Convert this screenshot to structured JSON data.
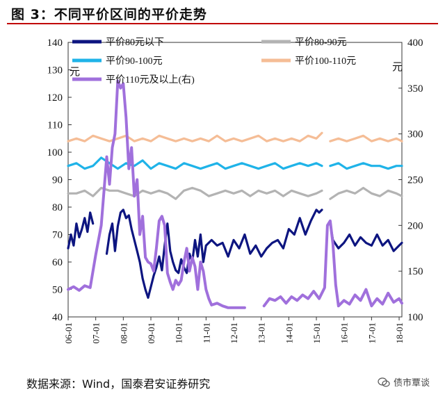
{
  "figure": {
    "title": "图 3：不同平价区间的平价走势",
    "source": "数据来源：Wind，国泰君安证券研究",
    "watermark": "债市覃谈"
  },
  "chart_data": {
    "type": "line",
    "left_axis": {
      "ylim": [
        40,
        140
      ],
      "ticks": [
        "40",
        "50",
        "60",
        "70",
        "80",
        "90",
        "100",
        "110",
        "120",
        "130",
        "140"
      ],
      "unit": "元"
    },
    "right_axis": {
      "ylim": [
        100,
        400
      ],
      "ticks": [
        "100",
        "150",
        "200",
        "250",
        "300",
        "350",
        "400"
      ],
      "unit": "元"
    },
    "x_ticks": [
      "06-01",
      "07-01",
      "08-01",
      "09-01",
      "10-01",
      "11-01",
      "12-01",
      "13-01",
      "14-01",
      "15-01",
      "16-01",
      "17-01",
      "18-01"
    ],
    "xlim": [
      2006.0,
      2018.1
    ],
    "grid": false,
    "legend_position": "top",
    "series": [
      {
        "name": "平价80元以下",
        "axis": "left",
        "color": "#0d1580",
        "x": [
          2006.0,
          2006.1,
          2006.2,
          2006.3,
          2006.4,
          2006.5,
          2006.6,
          2006.7,
          2006.8,
          2006.9,
          2007.0,
          2007.1,
          2007.2,
          2007.3,
          2007.4,
          2007.5,
          2007.6,
          2007.7,
          2007.8,
          2007.9,
          2008.0,
          2008.1,
          2008.2,
          2008.3,
          2008.4,
          2008.5,
          2008.6,
          2008.7,
          2008.8,
          2008.9,
          2009.0,
          2009.1,
          2009.2,
          2009.3,
          2009.4,
          2009.5,
          2009.6,
          2009.7,
          2009.8,
          2009.9,
          2010.0,
          2010.1,
          2010.2,
          2010.3,
          2010.4,
          2010.5,
          2010.6,
          2010.7,
          2010.8,
          2010.9,
          2011.0,
          2011.2,
          2011.4,
          2011.6,
          2011.8,
          2012.0,
          2012.2,
          2012.4,
          2012.6,
          2012.8,
          2013.0,
          2013.2,
          2013.4,
          2013.6,
          2013.8,
          2014.0,
          2014.2,
          2014.4,
          2014.6,
          2014.8,
          2015.0,
          2015.1,
          2015.2,
          null,
          2015.5,
          2015.6,
          2015.8,
          2016.0,
          2016.2,
          2016.4,
          2016.6,
          2016.8,
          2017.0,
          2017.2,
          2017.4,
          2017.6,
          2017.8,
          2018.0,
          2018.1
        ],
        "y": [
          65,
          70,
          66,
          74,
          69,
          72,
          76,
          71,
          78,
          74,
          null,
          null,
          null,
          null,
          63,
          70,
          74,
          64,
          73,
          78,
          79,
          76,
          77,
          72,
          68,
          64,
          60,
          54,
          50,
          47,
          51,
          55,
          58,
          62,
          57,
          66,
          74,
          64,
          60,
          57,
          56,
          61,
          58,
          56,
          63,
          60,
          68,
          62,
          70,
          60,
          66,
          68,
          66,
          67,
          62,
          68,
          65,
          70,
          63,
          66,
          62,
          65,
          67,
          68,
          65,
          72,
          70,
          76,
          70,
          75,
          79,
          78,
          79,
          null,
          74,
          68,
          65,
          67,
          70,
          66,
          69,
          67,
          66,
          70,
          66,
          68,
          64,
          66,
          67
        ],
        "gaps_note": ""
      },
      {
        "name": "平价80-90元",
        "axis": "left",
        "color": "#b3b3b3",
        "x": [
          2006.0,
          2006.3,
          2006.6,
          2006.9,
          2007.2,
          2007.5,
          2007.8,
          2008.1,
          2008.4,
          2008.7,
          2009.0,
          2009.3,
          2009.6,
          2009.9,
          2010.2,
          2010.5,
          2010.8,
          2011.1,
          2011.4,
          2011.7,
          2012.0,
          2012.3,
          2012.6,
          2012.9,
          2013.2,
          2013.5,
          2013.8,
          2014.1,
          2014.4,
          2014.7,
          2015.0,
          2015.2,
          null,
          2015.5,
          2015.8,
          2016.1,
          2016.4,
          2016.7,
          2017.0,
          2017.3,
          2017.6,
          2017.9,
          2018.1
        ],
        "y": [
          85,
          85,
          86,
          84,
          87,
          86,
          86,
          85,
          84,
          86,
          85,
          86,
          85,
          83,
          86,
          87,
          86,
          84,
          85,
          86,
          85,
          86,
          84,
          86,
          85,
          86,
          84,
          86,
          85,
          84,
          85,
          86,
          null,
          83,
          85,
          86,
          85,
          87,
          85,
          84,
          86,
          85,
          84
        ]
      },
      {
        "name": "平价90-100元",
        "axis": "left",
        "color": "#1fb3e8",
        "x": [
          2006.0,
          2006.3,
          2006.6,
          2006.9,
          2007.2,
          2007.5,
          2007.8,
          2008.1,
          2008.4,
          2008.7,
          2009.0,
          2009.3,
          2009.6,
          2009.9,
          2010.2,
          2010.5,
          2010.8,
          2011.1,
          2011.4,
          2011.7,
          2012.0,
          2012.3,
          2012.6,
          2012.9,
          2013.2,
          2013.5,
          2013.8,
          2014.1,
          2014.4,
          2014.7,
          2015.0,
          2015.2,
          null,
          2015.5,
          2015.8,
          2016.1,
          2016.4,
          2016.7,
          2017.0,
          2017.3,
          2017.6,
          2017.9,
          2018.1
        ],
        "y": [
          95,
          96,
          94,
          95,
          98,
          96,
          94,
          96,
          95,
          97,
          94,
          96,
          95,
          94,
          96,
          95,
          94,
          95,
          96,
          94,
          95,
          96,
          95,
          94,
          95,
          96,
          94,
          95,
          96,
          95,
          96,
          95,
          null,
          95,
          96,
          94,
          95,
          96,
          95,
          95,
          94,
          95,
          95
        ]
      },
      {
        "name": "平价100-110元",
        "axis": "left",
        "color": "#f5bd96",
        "x": [
          2006.0,
          2006.3,
          2006.6,
          2006.9,
          2007.2,
          2007.5,
          2007.8,
          2008.1,
          2008.4,
          2008.7,
          2009.0,
          2009.3,
          2009.6,
          2009.9,
          2010.2,
          2010.5,
          2010.8,
          2011.1,
          2011.4,
          2011.7,
          2012.0,
          2012.3,
          2012.6,
          2012.9,
          2013.2,
          2013.5,
          2013.8,
          2014.1,
          2014.4,
          2014.7,
          2015.0,
          2015.2,
          null,
          2015.5,
          2015.8,
          2016.1,
          2016.4,
          2016.7,
          2017.0,
          2017.3,
          2017.6,
          2017.9,
          2018.1
        ],
        "y": [
          104,
          105,
          104,
          106,
          105,
          104,
          105,
          106,
          104,
          105,
          104,
          106,
          105,
          104,
          105,
          104,
          105,
          104,
          106,
          104,
          105,
          104,
          105,
          106,
          104,
          105,
          104,
          105,
          104,
          106,
          105,
          107,
          null,
          104,
          105,
          104,
          105,
          106,
          104,
          105,
          104,
          105,
          104
        ]
      },
      {
        "name": "平价110元及以上(右)",
        "axis": "right",
        "color": "#a070dc",
        "x": [
          2006.0,
          2006.2,
          2006.4,
          2006.6,
          2006.8,
          2007.0,
          2007.2,
          2007.4,
          2007.5,
          2007.6,
          2007.7,
          2007.8,
          2007.9,
          2008.0,
          2008.1,
          2008.2,
          2008.3,
          2008.4,
          2008.5,
          2008.6,
          2008.7,
          2008.8,
          2008.9,
          2009.0,
          2009.1,
          2009.2,
          2009.3,
          2009.4,
          2009.5,
          2009.6,
          2009.7,
          2009.8,
          2009.9,
          2010.0,
          2010.1,
          2010.2,
          2010.3,
          2010.4,
          2010.5,
          2010.6,
          2010.7,
          2010.8,
          2010.9,
          2011.0,
          2011.1,
          2011.2,
          2011.4,
          2011.6,
          2011.8,
          2012.0,
          2012.2,
          2012.4,
          2012.6,
          2012.8,
          2013.0,
          null,
          2013.1,
          2013.3,
          2013.5,
          2013.7,
          2013.9,
          2014.1,
          2014.3,
          2014.5,
          2014.7,
          2014.9,
          2015.1,
          2015.3,
          2015.4,
          2015.5,
          2015.6,
          2015.7,
          2015.8,
          2016.0,
          2016.2,
          2016.4,
          2016.6,
          2016.8,
          2017.0,
          2017.2,
          2017.4,
          2017.6,
          2017.8,
          2018.0,
          2018.1
        ],
        "y": [
          130,
          133,
          129,
          134,
          132,
          168,
          200,
          275,
          245,
          285,
          300,
          358,
          350,
          355,
          318,
          262,
          285,
          232,
          250,
          190,
          210,
          165,
          160,
          158,
          150,
          175,
          205,
          210,
          200,
          148,
          138,
          130,
          140,
          135,
          140,
          160,
          175,
          150,
          165,
          155,
          130,
          160,
          150,
          130,
          120,
          113,
          115,
          112,
          110,
          110,
          110,
          110,
          null,
          null,
          110,
          null,
          112,
          120,
          118,
          122,
          115,
          122,
          118,
          124,
          120,
          128,
          120,
          132,
          200,
          205,
          180,
          135,
          112,
          118,
          114,
          124,
          118,
          130,
          112,
          120,
          114,
          126,
          116,
          120,
          115
        ]
      }
    ]
  }
}
